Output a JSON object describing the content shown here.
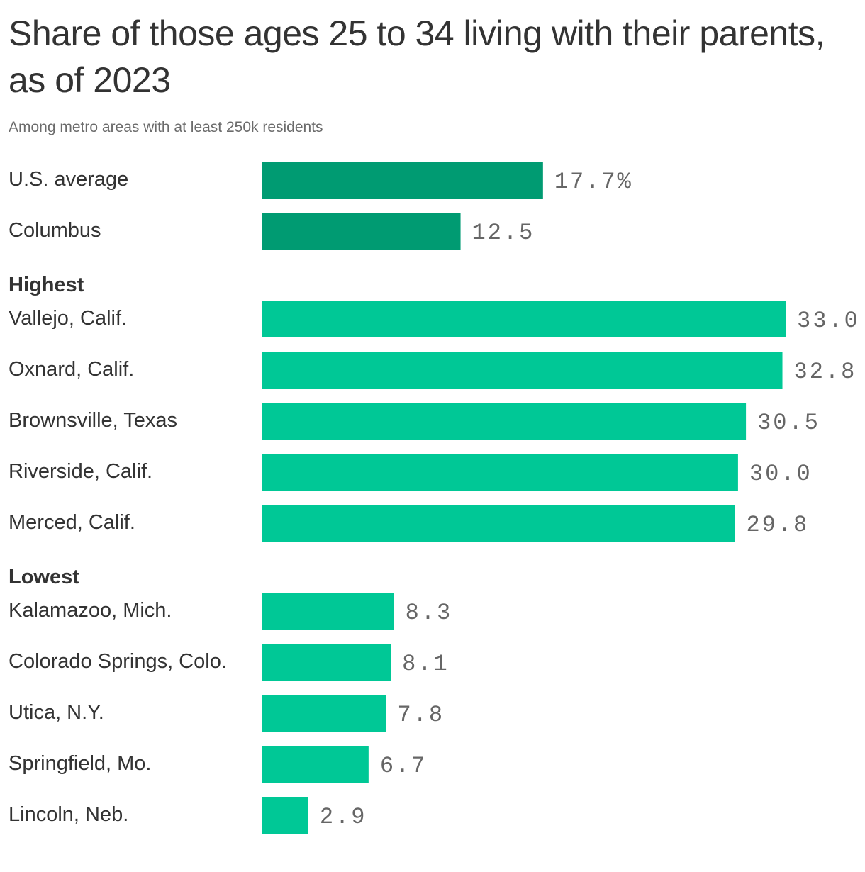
{
  "chart_data": {
    "type": "bar",
    "orientation": "horizontal",
    "title": "Share of those ages 25 to 34 living with their parents, as of 2023",
    "subtitle": "Among metro areas with at least 250k residents",
    "unit": "%",
    "xlim": [
      0,
      33.0
    ],
    "grid": false,
    "legend": "none",
    "colors": {
      "reference": "#009b72",
      "metro": "#00c896",
      "text": "#333333",
      "value_text": "#666666"
    },
    "groups": [
      {
        "heading": "",
        "style": "reference",
        "rows": [
          {
            "label": "U.S. average",
            "value": 17.7,
            "value_label": "17.7%"
          },
          {
            "label": "Columbus",
            "value": 12.5,
            "value_label": "12.5"
          }
        ]
      },
      {
        "heading": "Highest",
        "style": "metro",
        "rows": [
          {
            "label": "Vallejo, Calif.",
            "value": 33.0,
            "value_label": "33.0"
          },
          {
            "label": "Oxnard, Calif.",
            "value": 32.8,
            "value_label": "32.8"
          },
          {
            "label": "Brownsville, Texas",
            "value": 30.5,
            "value_label": "30.5"
          },
          {
            "label": "Riverside, Calif.",
            "value": 30.0,
            "value_label": "30.0"
          },
          {
            "label": "Merced, Calif.",
            "value": 29.8,
            "value_label": "29.8"
          }
        ]
      },
      {
        "heading": "Lowest",
        "style": "metro",
        "rows": [
          {
            "label": "Kalamazoo, Mich.",
            "value": 8.3,
            "value_label": "8.3"
          },
          {
            "label": "Colorado Springs, Colo.",
            "value": 8.1,
            "value_label": "8.1"
          },
          {
            "label": "Utica, N.Y.",
            "value": 7.8,
            "value_label": "7.8"
          },
          {
            "label": "Springfield, Mo.",
            "value": 6.7,
            "value_label": "6.7"
          },
          {
            "label": "Lincoln, Neb.",
            "value": 2.9,
            "value_label": "2.9"
          }
        ]
      }
    ]
  }
}
